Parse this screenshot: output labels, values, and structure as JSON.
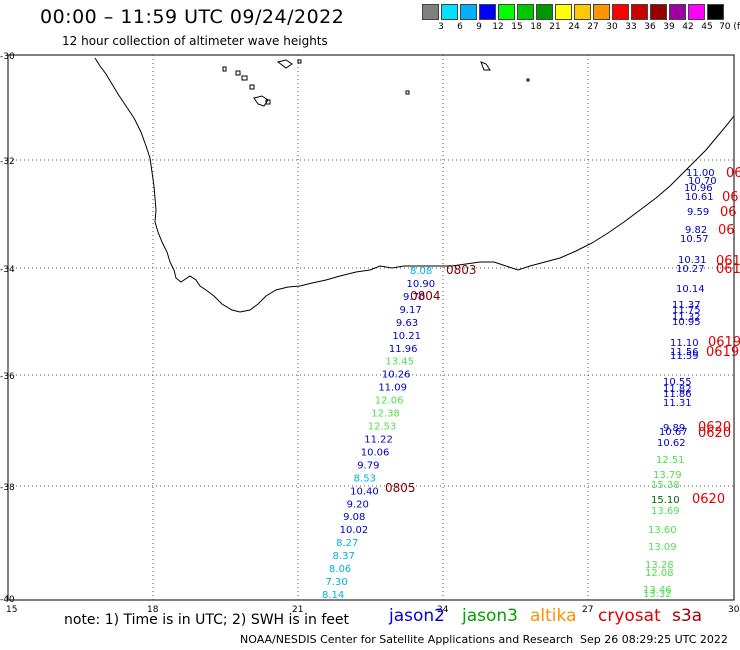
{
  "header": {
    "title": "00:00 – 11:59 UTC 09/24/2022",
    "subtitle": "12 hour collection of altimeter wave heights"
  },
  "color_scale": {
    "colors": [
      "#808080",
      "#00e0ff",
      "#00b0ff",
      "#0000ff",
      "#00ff00",
      "#00c800",
      "#009600",
      "#ffff00",
      "#ffc800",
      "#ff9600",
      "#ff0000",
      "#c80000",
      "#960000",
      "#a000a0",
      "#ff00ff",
      "#000000"
    ],
    "labels": [
      "3",
      "6",
      "9",
      "12",
      "15",
      "18",
      "21",
      "24",
      "27",
      "30",
      "33",
      "36",
      "39",
      "42",
      "45",
      "70 (ft)"
    ]
  },
  "axes": {
    "lon_ticks": [
      "15",
      "18",
      "21",
      "24",
      "27",
      "30"
    ],
    "lat_ticks": [
      "-30",
      "-32",
      "-34",
      "-36",
      "-38",
      "-40"
    ]
  },
  "tracks": {
    "west": [
      {
        "v": "8.08",
        "c": "#00b0e0"
      },
      {
        "v": "10.90",
        "c": "#0000c8"
      },
      {
        "v": "9.70",
        "c": "#0000c8"
      },
      {
        "v": "9.17",
        "c": "#0000c8"
      },
      {
        "v": "9.63",
        "c": "#0000c8"
      },
      {
        "v": "10.21",
        "c": "#0000c8"
      },
      {
        "v": "11.96",
        "c": "#0000c8"
      },
      {
        "v": "13.45",
        "c": "#50e050"
      },
      {
        "v": "10.26",
        "c": "#0000c8"
      },
      {
        "v": "11.09",
        "c": "#0000c8"
      },
      {
        "v": "12.06",
        "c": "#50e050"
      },
      {
        "v": "12.38",
        "c": "#50e050"
      },
      {
        "v": "12.53",
        "c": "#50e050"
      },
      {
        "v": "11.22",
        "c": "#0000c8"
      },
      {
        "v": "10.06",
        "c": "#0000c8"
      },
      {
        "v": "9.79",
        "c": "#0000c8"
      },
      {
        "v": "8.53",
        "c": "#00b0e0"
      },
      {
        "v": "10.40",
        "c": "#0000c8"
      },
      {
        "v": "9.20",
        "c": "#0000c8"
      },
      {
        "v": "9.08",
        "c": "#0000c8"
      },
      {
        "v": "10.02",
        "c": "#0000c8"
      },
      {
        "v": "8.27",
        "c": "#00b0e0"
      },
      {
        "v": "8.37",
        "c": "#00b0e0"
      },
      {
        "v": "8.06",
        "c": "#00b0e0"
      },
      {
        "v": "7.30",
        "c": "#00b0e0"
      },
      {
        "v": "8.14",
        "c": "#00b0e0"
      }
    ],
    "west_times": [
      "0803",
      "0804",
      "0805"
    ],
    "east": [
      {
        "v": "11.00",
        "c": "#0000c8"
      },
      {
        "v": "10.70",
        "c": "#0000c8"
      },
      {
        "v": "10.96",
        "c": "#0000c8"
      },
      {
        "v": "10.61",
        "c": "#0000c8"
      },
      {
        "v": "9.59",
        "c": "#0000c8"
      },
      {
        "v": "9.82",
        "c": "#0000c8"
      },
      {
        "v": "10.57",
        "c": "#0000c8"
      },
      {
        "v": "10.31",
        "c": "#0000c8"
      },
      {
        "v": "10.27",
        "c": "#0000c8"
      },
      {
        "v": "10.14",
        "c": "#0000c8"
      },
      {
        "v": "11.37",
        "c": "#0000c8"
      },
      {
        "v": "11.75",
        "c": "#0000c8"
      },
      {
        "v": "11.32",
        "c": "#0000c8"
      },
      {
        "v": "10.95",
        "c": "#0000c8"
      },
      {
        "v": "11.10",
        "c": "#0000c8"
      },
      {
        "v": "11.56",
        "c": "#0000c8"
      },
      {
        "v": "11.59",
        "c": "#0000c8"
      },
      {
        "v": "10.55",
        "c": "#0000c8"
      },
      {
        "v": "11.82",
        "c": "#0000c8"
      },
      {
        "v": "11.86",
        "c": "#0000c8"
      },
      {
        "v": "11.31",
        "c": "#0000c8"
      },
      {
        "v": "9.89",
        "c": "#0000c8"
      },
      {
        "v": "10.67",
        "c": "#0000c8"
      },
      {
        "v": "10.62",
        "c": "#0000c8"
      },
      {
        "v": "12.51",
        "c": "#50e050"
      },
      {
        "v": "13.79",
        "c": "#50e050"
      },
      {
        "v": "15.38",
        "c": "#50e050"
      },
      {
        "v": "15.10",
        "c": "#006400"
      },
      {
        "v": "13.69",
        "c": "#50e050"
      },
      {
        "v": "13.60",
        "c": "#50e050"
      },
      {
        "v": "13.09",
        "c": "#50e050"
      },
      {
        "v": "13.28",
        "c": "#50e050"
      },
      {
        "v": "12.08",
        "c": "#50e050"
      },
      {
        "v": "13.46",
        "c": "#50e050"
      },
      {
        "v": "13.32",
        "c": "#50e050"
      }
    ],
    "east_times": [
      "06",
      "06",
      "06",
      "06",
      "061",
      "061",
      "0619",
      "0619",
      "0620",
      "0620",
      "0620"
    ]
  },
  "footer": {
    "note": "note: 1) Time is in UTC; 2) SWH is in feet",
    "satellites": [
      {
        "name": "jason2",
        "color": "#0000e0"
      },
      {
        "name": "jason3",
        "color": "#00a000"
      },
      {
        "name": "altika",
        "color": "#ff9000"
      },
      {
        "name": "cryosat",
        "color": "#e00000"
      },
      {
        "name": "s3a",
        "color": "#a00000"
      }
    ],
    "credit": "NOAA/NESDIS Center for Satellite Applications and Research",
    "timestamp": "Sep 26 08:29:25 UTC 2022"
  }
}
